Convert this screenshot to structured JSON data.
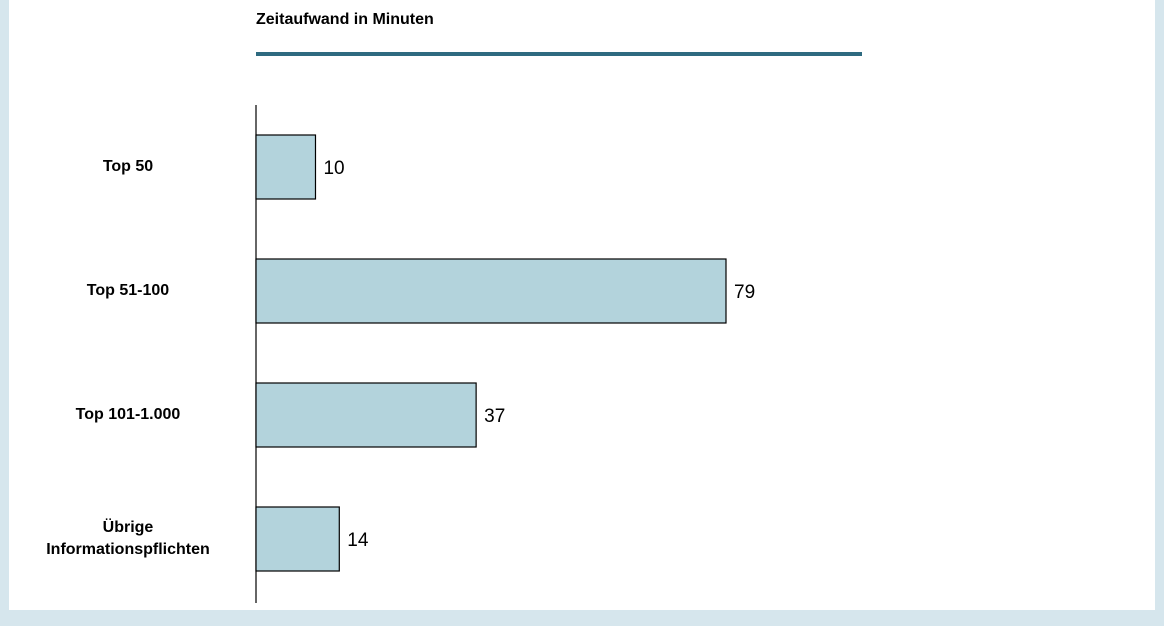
{
  "chart_data": {
    "type": "bar",
    "orientation": "horizontal",
    "title": "Zeitaufwand in Minuten",
    "categories": [
      "Top 50",
      "Top 51-100",
      "Top 101-1.000",
      "Übrige\nInformationspflichten"
    ],
    "values": [
      10,
      79,
      37,
      14
    ],
    "color": "#b3d3dc"
  }
}
